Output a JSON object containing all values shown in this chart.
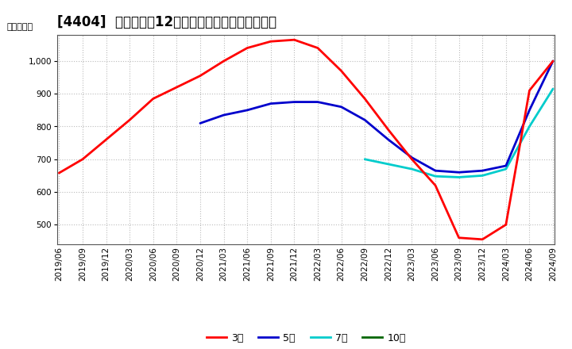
{
  "title": "[4404]  当期純利益12か月移動合計の平均値の推移",
  "ylabel": "（百万円）",
  "background_color": "#ffffff",
  "grid_color": "#aaaaaa",
  "plot_bg_color": "#ffffff",
  "ylim": [
    440,
    1080
  ],
  "yticks": [
    500,
    600,
    700,
    800,
    900,
    1000
  ],
  "series": {
    "3year": {
      "label": "3年",
      "color": "#ff0000",
      "dates": [
        "2019-06",
        "2019-09",
        "2019-12",
        "2020-03",
        "2020-06",
        "2020-09",
        "2020-12",
        "2021-03",
        "2021-06",
        "2021-09",
        "2021-12",
        "2022-03",
        "2022-06",
        "2022-09",
        "2022-12",
        "2023-03",
        "2023-06",
        "2023-09",
        "2023-12",
        "2024-03",
        "2024-06",
        "2024-09"
      ],
      "values": [
        658,
        700,
        760,
        820,
        885,
        920,
        955,
        1000,
        1040,
        1060,
        1065,
        1040,
        970,
        885,
        790,
        700,
        620,
        460,
        455,
        500,
        910,
        1000
      ]
    },
    "5year": {
      "label": "5年",
      "color": "#0000cc",
      "dates": [
        "2020-12",
        "2021-03",
        "2021-06",
        "2021-09",
        "2021-12",
        "2022-03",
        "2022-06",
        "2022-09",
        "2022-12",
        "2023-03",
        "2023-06",
        "2023-09",
        "2023-12",
        "2024-03",
        "2024-06",
        "2024-09"
      ],
      "values": [
        810,
        835,
        850,
        870,
        875,
        875,
        860,
        820,
        760,
        705,
        665,
        660,
        665,
        680,
        850,
        1000
      ]
    },
    "7year": {
      "label": "7年",
      "color": "#00cccc",
      "dates": [
        "2022-09",
        "2022-12",
        "2023-03",
        "2023-06",
        "2023-09",
        "2023-12",
        "2024-03",
        "2024-06",
        "2024-09"
      ],
      "values": [
        700,
        685,
        670,
        648,
        645,
        650,
        670,
        800,
        915
      ]
    },
    "10year": {
      "label": "10年",
      "color": "#006600",
      "dates": [],
      "values": []
    }
  },
  "xtick_dates": [
    "2019-06",
    "2019-09",
    "2019-12",
    "2020-03",
    "2020-06",
    "2020-09",
    "2020-12",
    "2021-03",
    "2021-06",
    "2021-09",
    "2021-12",
    "2022-03",
    "2022-06",
    "2022-09",
    "2022-12",
    "2023-03",
    "2023-06",
    "2023-09",
    "2023-12",
    "2024-03",
    "2024-06",
    "2024-09"
  ],
  "xtick_labels": [
    "2019/06",
    "2019/09",
    "2019/12",
    "2020/03",
    "2020/06",
    "2020/09",
    "2020/12",
    "2021/03",
    "2021/06",
    "2021/09",
    "2021/12",
    "2022/03",
    "2022/06",
    "2022/09",
    "2022/12",
    "2023/03",
    "2023/06",
    "2023/09",
    "2023/12",
    "2024/03",
    "2024/06",
    "2024/09"
  ],
  "title_fontsize": 12,
  "axis_fontsize": 8,
  "tick_fontsize": 7.5,
  "legend_fontsize": 9,
  "linewidth": 2.0
}
